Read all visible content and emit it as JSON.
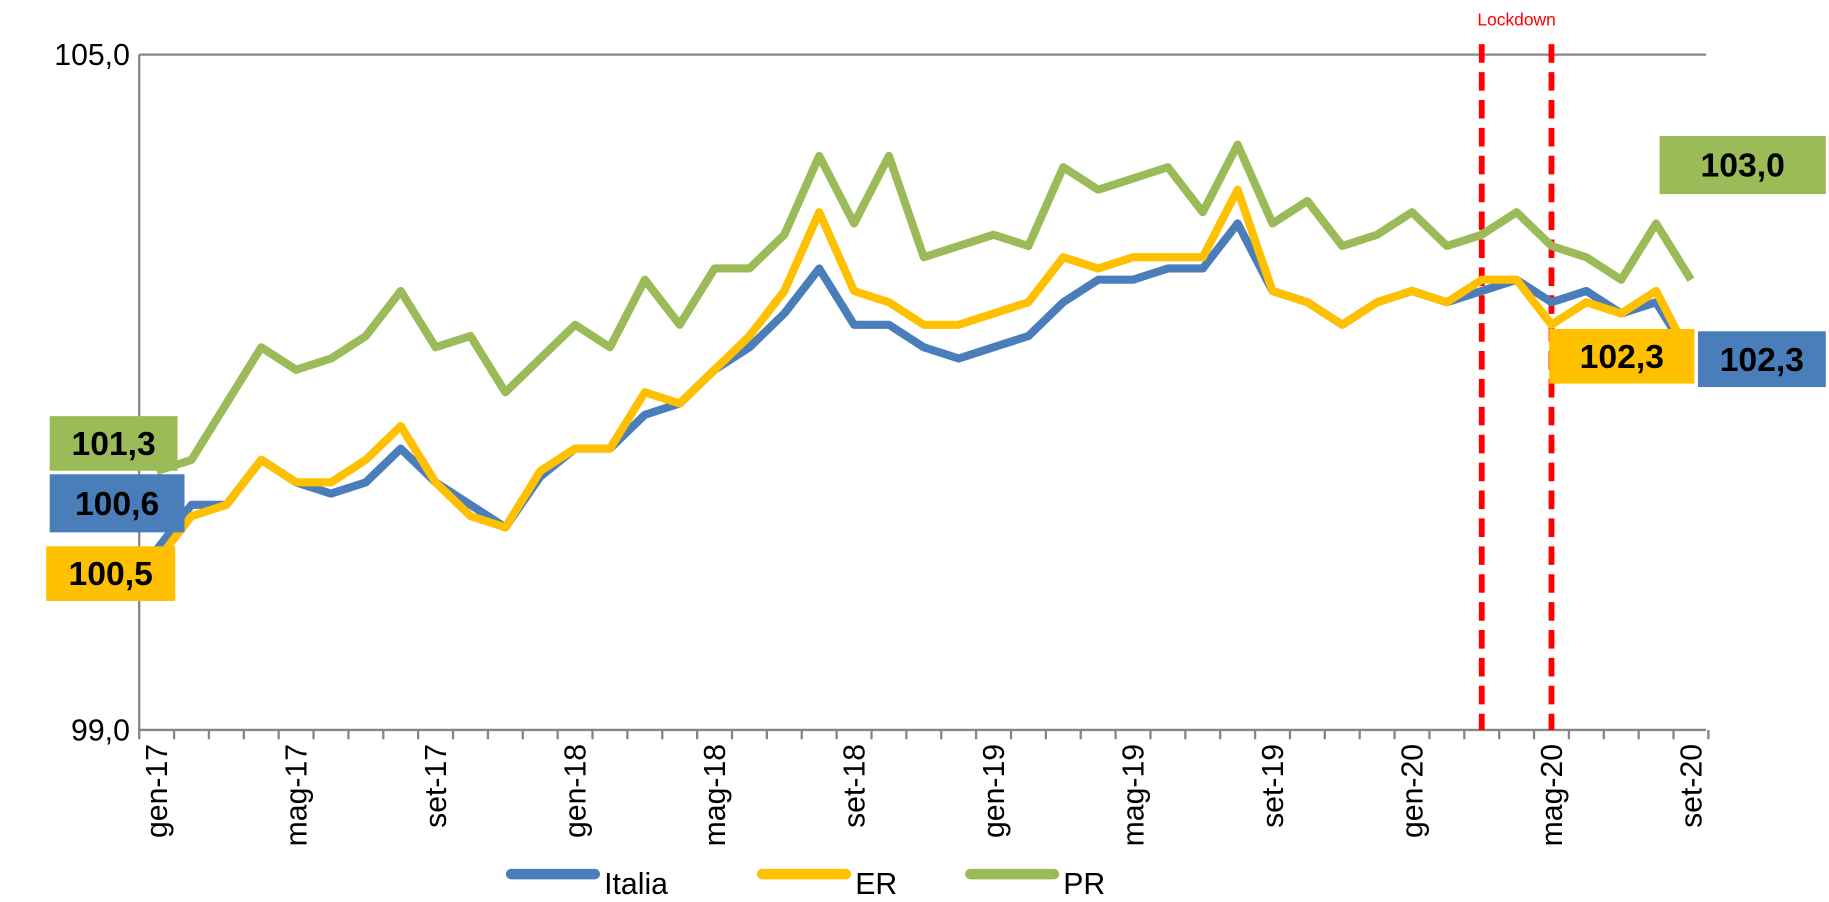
{
  "chart_data": {
    "type": "line",
    "categories": [
      "gen-17",
      null,
      null,
      null,
      "mag-17",
      null,
      null,
      null,
      "set-17",
      null,
      null,
      null,
      "gen-18",
      null,
      null,
      null,
      "mag-18",
      null,
      null,
      null,
      "set-18",
      null,
      null,
      null,
      "gen-19",
      null,
      null,
      null,
      "mag-19",
      null,
      null,
      null,
      "set-19",
      null,
      null,
      null,
      "gen-20",
      null,
      null,
      null,
      "mag-20",
      null,
      null,
      null,
      "set-20"
    ],
    "series": [
      {
        "name": "Italia",
        "color": "#4a7ebb",
        "values": [
          100.6,
          101.0,
          101.0,
          101.4,
          101.2,
          101.1,
          101.2,
          101.5,
          101.2,
          101.0,
          100.8,
          101.25,
          101.5,
          101.5,
          101.8,
          101.9,
          102.2,
          102.4,
          102.7,
          103.1,
          102.6,
          102.6,
          102.4,
          102.3,
          102.4,
          102.5,
          102.8,
          103.0,
          103.0,
          103.1,
          103.1,
          103.5,
          102.9,
          102.8,
          102.6,
          102.8,
          102.9,
          102.8,
          102.9,
          103.0,
          102.8,
          102.9,
          102.7,
          102.8,
          102.3
        ],
        "value_labels": [
          "100,6",
          null,
          null,
          null,
          null,
          null,
          null,
          null,
          null,
          null,
          null,
          null,
          null,
          null,
          null,
          null,
          null,
          null,
          null,
          null,
          null,
          null,
          null,
          null,
          null,
          null,
          null,
          null,
          null,
          null,
          null,
          null,
          null,
          null,
          null,
          null,
          null,
          null,
          null,
          null,
          null,
          null,
          null,
          null,
          "102,3"
        ]
      },
      {
        "name": "ER",
        "color": "#ffc000",
        "values": [
          100.5,
          100.9,
          101.0,
          101.4,
          101.2,
          101.2,
          101.4,
          101.7,
          101.2,
          100.9,
          100.8,
          101.3,
          101.5,
          101.5,
          102.0,
          101.9,
          102.2,
          102.5,
          102.9,
          103.6,
          102.9,
          102.8,
          102.6,
          102.6,
          102.7,
          102.8,
          103.2,
          103.1,
          103.2,
          103.2,
          103.2,
          103.8,
          102.9,
          102.8,
          102.6,
          102.8,
          102.9,
          102.8,
          103.0,
          103.0,
          102.6,
          102.8,
          102.7,
          102.9,
          102.3
        ],
        "value_labels": [
          "100,5",
          null,
          null,
          null,
          null,
          null,
          null,
          null,
          null,
          null,
          null,
          null,
          null,
          null,
          null,
          null,
          null,
          null,
          null,
          null,
          null,
          null,
          null,
          null,
          null,
          null,
          null,
          null,
          null,
          null,
          null,
          null,
          null,
          null,
          null,
          null,
          null,
          null,
          null,
          null,
          null,
          null,
          null,
          null,
          "102,3"
        ]
      },
      {
        "name": "PR",
        "color": "#9bbb59",
        "values": [
          101.3,
          101.4,
          101.9,
          102.4,
          102.2,
          102.3,
          102.5,
          102.9,
          102.4,
          102.5,
          102.0,
          102.3,
          102.6,
          102.4,
          103.0,
          102.6,
          103.1,
          103.1,
          103.4,
          104.1,
          103.5,
          104.1,
          103.2,
          103.3,
          103.4,
          103.3,
          104.0,
          103.8,
          103.9,
          104.0,
          103.6,
          104.2,
          103.5,
          103.7,
          103.3,
          103.4,
          103.6,
          103.3,
          103.4,
          103.6,
          103.3,
          103.2,
          103.0,
          103.5,
          103.0
        ],
        "value_labels": [
          "101,3",
          null,
          null,
          null,
          null,
          null,
          null,
          null,
          null,
          null,
          null,
          null,
          null,
          null,
          null,
          null,
          null,
          null,
          null,
          null,
          null,
          null,
          null,
          null,
          null,
          null,
          null,
          null,
          null,
          null,
          null,
          null,
          null,
          null,
          null,
          null,
          null,
          null,
          null,
          null,
          null,
          null,
          null,
          null,
          "103,0"
        ]
      }
    ],
    "ylim": [
      99,
      105
    ],
    "yticks": [
      {
        "value": 99,
        "label": "99,0"
      },
      {
        "value": 105,
        "label": "105,0"
      }
    ],
    "grid": true,
    "legend": "bottom",
    "lockdown": {
      "label": "Lockdown",
      "at": [
        38,
        40
      ],
      "color": "#ff0000"
    }
  }
}
